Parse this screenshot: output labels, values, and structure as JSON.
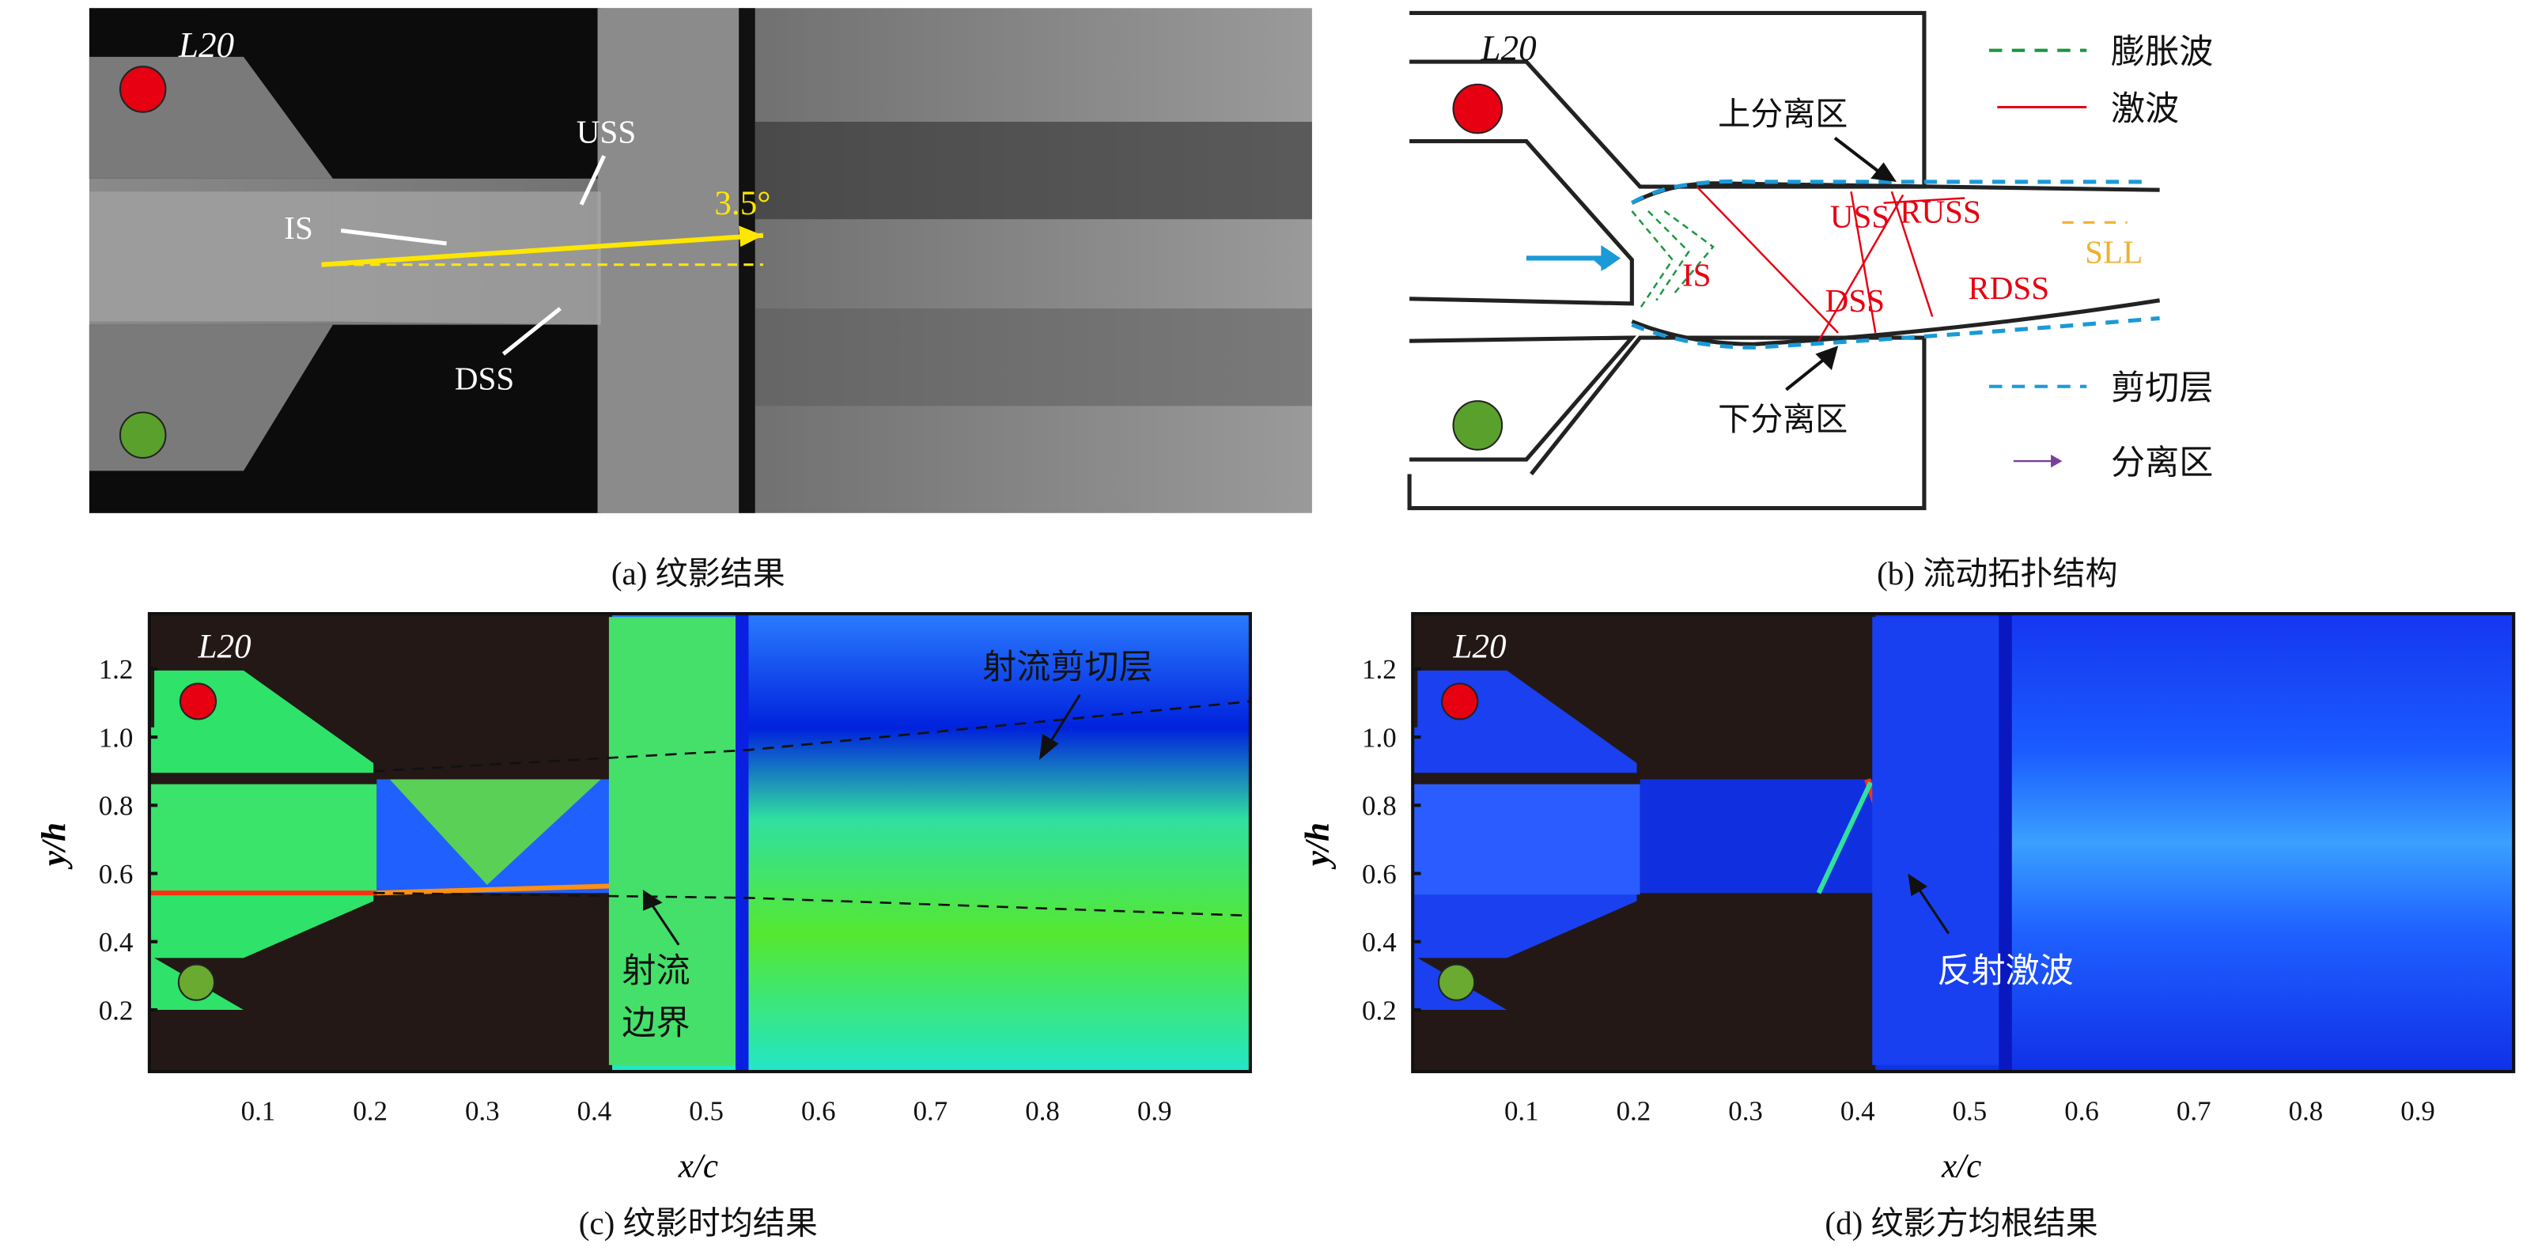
{
  "panel_a": {
    "caption": "(a) 纹影结果",
    "model": "L20",
    "labels": {
      "uss": "USS",
      "is": "IS",
      "dss": "DSS",
      "angle": "3.5°"
    }
  },
  "panel_b": {
    "caption": "(b) 流动拓扑结构",
    "model": "L20",
    "labels": {
      "upper_sep": "上分离区",
      "lower_sep": "下分离区",
      "uss": "USS",
      "russ": "RUSS",
      "is": "IS",
      "dss": "DSS",
      "rdss": "RDSS",
      "sll": "SLL"
    },
    "legend": [
      {
        "label": "膨胀波",
        "color": "#1a9641",
        "style": "dashed"
      },
      {
        "label": "激波",
        "color": "#e60012",
        "style": "solid"
      },
      {
        "label": "剪切层",
        "color": "#1a9ad6",
        "style": "dashed"
      },
      {
        "label": "分离区",
        "color": "#7b3f9a",
        "style": "arrow"
      }
    ]
  },
  "panel_c": {
    "caption": "(c) 纹影时均结果",
    "model": "L20",
    "xlabel": "x/c",
    "ylabel": "y/h",
    "x_ticks": [
      "0.1",
      "0.2",
      "0.3",
      "0.4",
      "0.5",
      "0.6",
      "0.7",
      "0.8",
      "0.9"
    ],
    "y_ticks": [
      "1.2",
      "1.0",
      "0.8",
      "0.6",
      "0.4",
      "0.2"
    ],
    "annotations": {
      "shear_layer": "射流剪切层",
      "boundary_1": "射流",
      "boundary_2": "边界"
    }
  },
  "panel_d": {
    "caption": "(d) 纹影方均根结果",
    "model": "L20",
    "xlabel": "x/c",
    "ylabel": "y/h",
    "x_ticks": [
      "0.1",
      "0.2",
      "0.3",
      "0.4",
      "0.5",
      "0.6",
      "0.7",
      "0.8",
      "0.9"
    ],
    "y_ticks": [
      "1.2",
      "1.0",
      "0.8",
      "0.6",
      "0.4",
      "0.2"
    ],
    "annotations": {
      "reflected_shock": "反射激波"
    }
  }
}
